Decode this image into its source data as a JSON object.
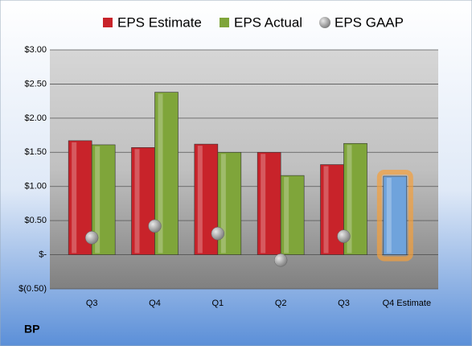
{
  "chart_data": {
    "type": "bar",
    "title": "BP",
    "categories": [
      "Q3",
      "Q4",
      "Q1",
      "Q2",
      "Q3",
      "Q4 Estimate"
    ],
    "series": [
      {
        "name": "EPS Estimate",
        "color": "#c8232a",
        "values": [
          1.67,
          1.57,
          1.62,
          1.5,
          1.32,
          1.15
        ],
        "colors": [
          "#c8232a",
          "#c8232a",
          "#c8232a",
          "#c8232a",
          "#c8232a",
          "#6fa3dc"
        ]
      },
      {
        "name": "EPS Actual",
        "color": "#7fa53a",
        "values": [
          1.61,
          2.38,
          1.5,
          1.16,
          1.63,
          null
        ]
      },
      {
        "name": "EPS GAAP",
        "color": "#9a9a9a",
        "type": "scatter",
        "values": [
          0.25,
          0.42,
          0.31,
          -0.08,
          0.27,
          null
        ]
      }
    ],
    "ylim": [
      -0.5,
      3.0
    ],
    "yticks": [
      {
        "value": -0.5,
        "label": "$(0.50)"
      },
      {
        "value": 0,
        "label": "$-"
      },
      {
        "value": 0.5,
        "label": "$0.50"
      },
      {
        "value": 1.0,
        "label": "$1.00"
      },
      {
        "value": 1.5,
        "label": "$1.50"
      },
      {
        "value": 2.0,
        "label": "$2.00"
      },
      {
        "value": 2.5,
        "label": "$2.50"
      },
      {
        "value": 3.0,
        "label": "$3.00"
      }
    ],
    "grid": true
  }
}
